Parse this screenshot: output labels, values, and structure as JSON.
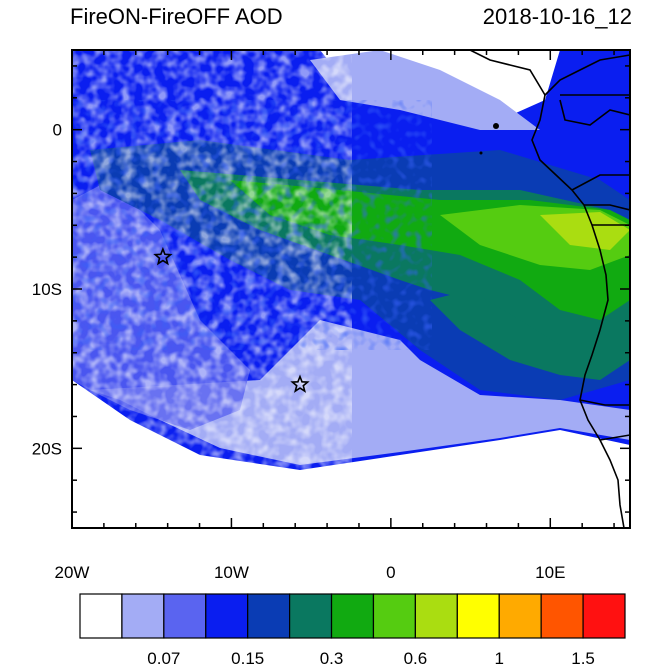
{
  "title": "FireON-FireOFF AOD",
  "timestamp": "2018-10-16_12",
  "map": {
    "lon_range": [
      -20,
      15
    ],
    "lat_range": [
      -25,
      5
    ],
    "x_ticks": [
      {
        "value": -20,
        "label": "20W"
      },
      {
        "value": -10,
        "label": "10W"
      },
      {
        "value": 0,
        "label": "0"
      },
      {
        "value": 10,
        "label": "10E"
      }
    ],
    "y_ticks": [
      {
        "value": 0,
        "label": "0"
      },
      {
        "value": -10,
        "label": "10S"
      },
      {
        "value": -20,
        "label": "20S"
      }
    ],
    "markers": [
      {
        "type": "star",
        "lon": -14.3,
        "lat": -8.0
      },
      {
        "type": "star",
        "lon": -5.7,
        "lat": -16.0
      }
    ]
  },
  "colorbar": {
    "colors": [
      "#ffffff",
      "#a3acf5",
      "#5a64f0",
      "#0a1ef0",
      "#0a3cb4",
      "#0a7860",
      "#11aa11",
      "#55cc11",
      "#aadd11",
      "#ffff00",
      "#ffaa00",
      "#ff5500",
      "#ff1111"
    ],
    "labels": [
      {
        "after_box": 2,
        "text": "0.07"
      },
      {
        "after_box": 4,
        "text": "0.15"
      },
      {
        "after_box": 6,
        "text": "0.3"
      },
      {
        "after_box": 8,
        "text": "0.6"
      },
      {
        "after_box": 10,
        "text": "1"
      },
      {
        "after_box": 12,
        "text": "1.5"
      }
    ]
  }
}
